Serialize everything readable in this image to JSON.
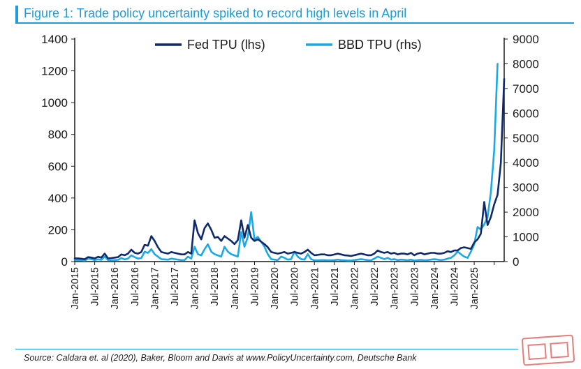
{
  "title": "Figure 1: Trade policy uncertainty spiked to record high levels in April",
  "source": "Source: Caldara et. al (2020), Baker, Bloom and Davis at www.PolicyUncertainty.com, Deutsche Bank",
  "colors": {
    "accent": "#1f9bd7",
    "fed_tpu": "#0f2a6b",
    "bbd_tpu": "#1aa9e6",
    "stamp": "#d9534f"
  },
  "chart_data": {
    "type": "line",
    "x_start": "Jan-2015",
    "x_frequency": "monthly",
    "x_tick_labels": [
      "Jan-2015",
      "Jul-2015",
      "Jan-2016",
      "Jul-2016",
      "Jan-2017",
      "Jul-2017",
      "Jan-2018",
      "Jul-2018",
      "Jan-2019",
      "Jul-2019",
      "Jan-2020",
      "Jul-2020",
      "Jan-2021",
      "Jul-2021",
      "Jan-2022",
      "Jul-2022",
      "Jan-2023",
      "Jul-2023",
      "Jan-2024",
      "Jul-2024",
      "Jan-2025"
    ],
    "y_left": {
      "label": "",
      "ylim": [
        0,
        1400
      ],
      "ticks": [
        0,
        200,
        400,
        600,
        800,
        1000,
        1200,
        1400
      ]
    },
    "y_right": {
      "label": "",
      "ylim": [
        0,
        9000
      ],
      "ticks": [
        0,
        1000,
        2000,
        3000,
        4000,
        5000,
        6000,
        7000,
        8000,
        9000
      ]
    },
    "legend": {
      "position": "top-center"
    },
    "grid": false,
    "series": [
      {
        "name": "Fed TPU (lhs)",
        "axis": "left",
        "color": "#0f2a6b",
        "values": [
          20,
          20,
          18,
          15,
          28,
          25,
          20,
          30,
          25,
          50,
          20,
          22,
          25,
          28,
          45,
          40,
          50,
          75,
          55,
          50,
          60,
          105,
          100,
          160,
          130,
          90,
          60,
          55,
          50,
          60,
          55,
          50,
          45,
          45,
          60,
          50,
          260,
          180,
          140,
          210,
          240,
          200,
          150,
          155,
          130,
          160,
          145,
          130,
          110,
          135,
          260,
          150,
          230,
          150,
          130,
          140,
          125,
          110,
          90,
          60,
          55,
          50,
          55,
          60,
          50,
          55,
          60,
          55,
          50,
          60,
          75,
          55,
          40,
          42,
          45,
          45,
          40,
          40,
          45,
          50,
          45,
          40,
          38,
          35,
          40,
          45,
          50,
          45,
          40,
          40,
          50,
          70,
          60,
          55,
          60,
          50,
          55,
          45,
          50,
          50,
          45,
          55,
          40,
          50,
          55,
          45,
          50,
          55,
          55,
          50,
          50,
          55,
          65,
          60,
          70,
          70,
          85,
          90,
          85,
          80,
          120,
          140,
          175,
          375,
          230,
          280,
          360,
          420,
          620,
          1150
        ]
      },
      {
        "name": "BBD TPU (rhs)",
        "axis": "right",
        "color": "#1aa9e6",
        "values": [
          70,
          60,
          50,
          40,
          120,
          100,
          60,
          90,
          70,
          200,
          60,
          50,
          60,
          70,
          140,
          90,
          120,
          250,
          180,
          120,
          140,
          400,
          350,
          500,
          300,
          200,
          100,
          90,
          80,
          120,
          100,
          80,
          60,
          60,
          200,
          120,
          600,
          300,
          250,
          500,
          700,
          400,
          300,
          250,
          200,
          600,
          400,
          300,
          250,
          200,
          1200,
          600,
          1000,
          2000,
          900,
          1000,
          800,
          600,
          300,
          100,
          80,
          60,
          200,
          150,
          80,
          100,
          400,
          200,
          100,
          80,
          300,
          100,
          50,
          50,
          60,
          60,
          50,
          50,
          60,
          80,
          60,
          50,
          40,
          40,
          60,
          80,
          100,
          80,
          60,
          50,
          120,
          200,
          150,
          100,
          150,
          80,
          100,
          60,
          80,
          70,
          50,
          80,
          40,
          60,
          70,
          50,
          60,
          80,
          100,
          80,
          60,
          80,
          120,
          150,
          250,
          400,
          300,
          200,
          150,
          400,
          700,
          1400,
          1300,
          1500,
          1800,
          2800,
          4500,
          8000
        ]
      }
    ]
  }
}
